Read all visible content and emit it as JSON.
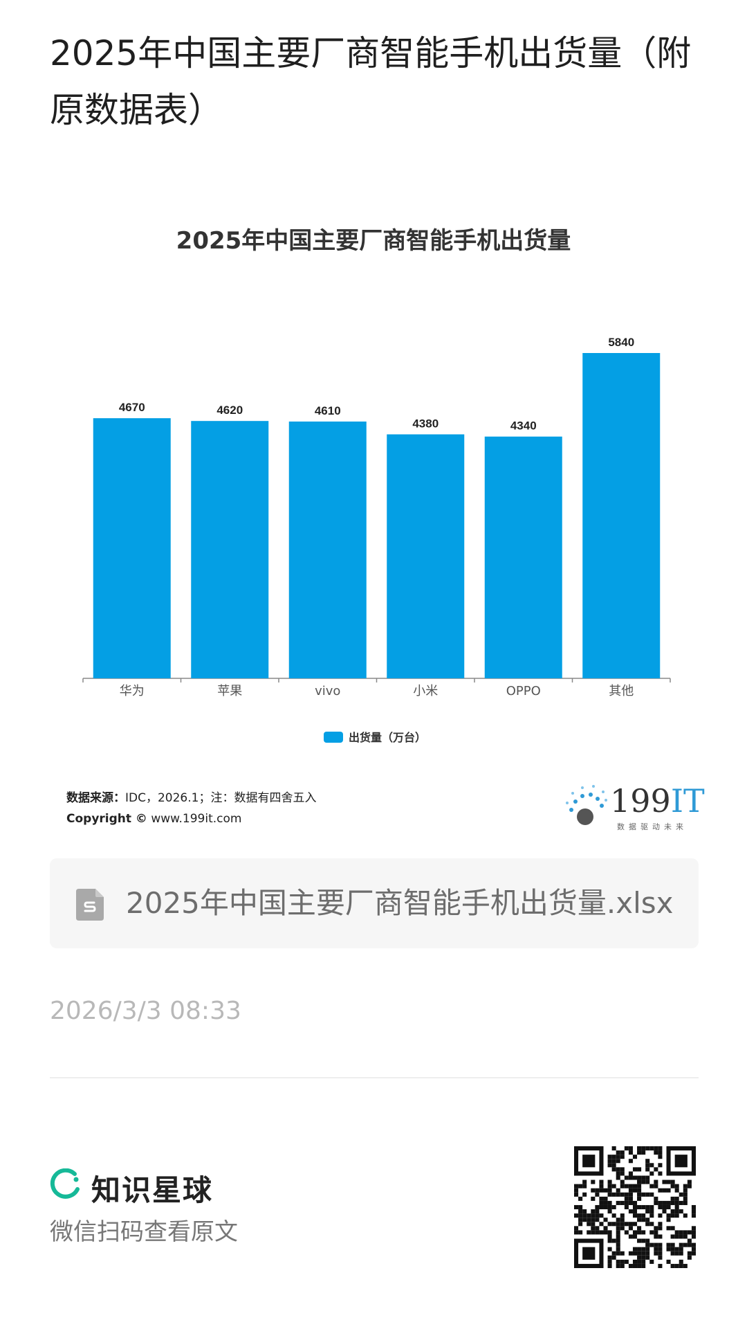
{
  "page": {
    "title": "2025年中国主要厂商智能手机出货量（附原数据表）"
  },
  "chart_data": {
    "type": "bar",
    "title": "2025年中国主要厂商智能手机出货量",
    "categories": [
      "华为",
      "苹果",
      "vivo",
      "小米",
      "OPPO",
      "其他"
    ],
    "series": [
      {
        "name": "出货量（万台）",
        "values": [
          4670,
          4620,
          4610,
          4380,
          4340,
          5840
        ]
      }
    ],
    "ylim": [
      0,
      5840
    ],
    "grid": false,
    "legend_position": "bottom",
    "bar_color": "#049fe4"
  },
  "source": {
    "label": "数据来源：",
    "text": "IDC，2026.1；注：数据有四舍五入",
    "copyright_label": "Copyright ©",
    "copyright_site": "www.199it.com"
  },
  "logo": {
    "text_main": "199",
    "text_accent": "IT",
    "tagline": "数据驱动未来"
  },
  "attachment": {
    "file_name": "2025年中国主要厂商智能手机出货量.xlsx",
    "icon": "spreadsheet-file-icon"
  },
  "post": {
    "timestamp": "2026/3/3 08:33"
  },
  "footer": {
    "brand_name": "知识星球",
    "hint": "微信扫码查看原文",
    "brand_color": "#16b998"
  }
}
